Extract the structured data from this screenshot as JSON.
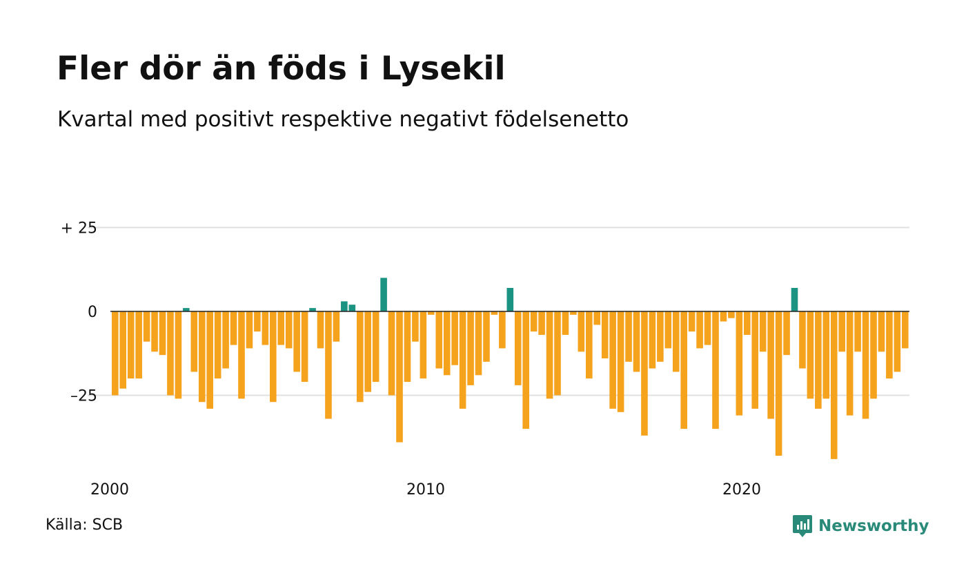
{
  "title": "Fler dör än föds i Lysekil",
  "subtitle": "Kvartal med positivt respektive negativt födelsenetto",
  "source": "Källa: SCB",
  "brand": "Newsworthy",
  "chart_data": {
    "type": "bar",
    "ylim": [
      -45,
      27
    ],
    "y_ticks": [
      {
        "value": 25,
        "label": "+ 25"
      },
      {
        "value": 0,
        "label": "0"
      },
      {
        "value": -25,
        "label": "–25"
      }
    ],
    "x_ticks": [
      {
        "value": 2000,
        "label": "2000"
      },
      {
        "value": 2010,
        "label": "2010"
      },
      {
        "value": 2020,
        "label": "2020"
      }
    ],
    "x_start": 2000,
    "periods_per_year": 4,
    "grid": true,
    "colors": {
      "positive": "#1a9382",
      "negative": "#f5a21d",
      "grid": "#e0e0e0",
      "zero_line": "#222222"
    },
    "values": [
      -25,
      -23,
      -20,
      -20,
      -9,
      -12,
      -13,
      -25,
      -26,
      1,
      -18,
      -27,
      -29,
      -20,
      -17,
      -10,
      -26,
      -11,
      -6,
      -10,
      -27,
      -10,
      -11,
      -18,
      -21,
      1,
      -11,
      -32,
      -9,
      3,
      2,
      -27,
      -24,
      -21,
      10,
      -25,
      -39,
      -21,
      -9,
      -20,
      -1,
      -17,
      -19,
      -16,
      -29,
      -22,
      -19,
      -15,
      -1,
      -11,
      7,
      -22,
      -35,
      -6,
      -7,
      -26,
      -25,
      -7,
      -1,
      -12,
      -20,
      -4,
      -14,
      -29,
      -30,
      -15,
      -18,
      -37,
      -17,
      -15,
      -11,
      -18,
      -35,
      -6,
      -11,
      -10,
      -35,
      -3,
      -2,
      -31,
      -7,
      -29,
      -12,
      -32,
      -43,
      -13,
      7,
      -17,
      -26,
      -29,
      -26,
      -44,
      -12,
      -31,
      -12,
      -32,
      -26,
      -12,
      -20,
      -18,
      -11
    ]
  }
}
